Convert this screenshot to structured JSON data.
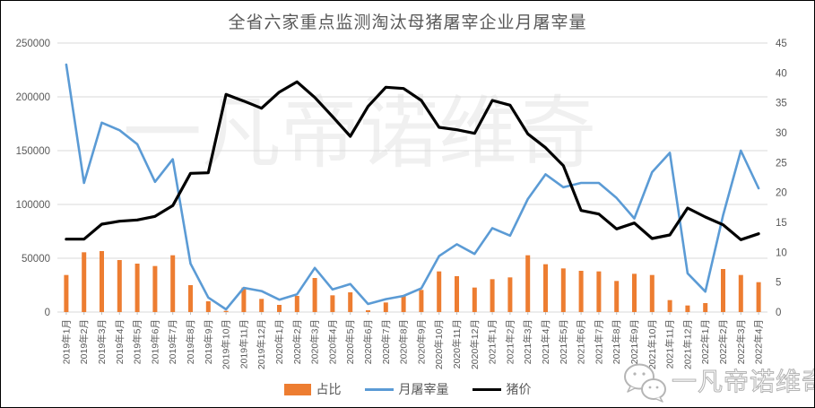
{
  "chart_data": {
    "type": "combo",
    "title": "全省六家重点监测淘汰母猪屠宰企业月屠宰量",
    "categories": [
      "2019年1月",
      "2019年2月",
      "2019年3月",
      "2019年4月",
      "2019年5月",
      "2019年6月",
      "2019年7月",
      "2019年8月",
      "2019年9月",
      "2019年10月",
      "2019年11月",
      "2019年12月",
      "2020年1月",
      "2020年2月",
      "2020年3月",
      "2020年4月",
      "2020年5月",
      "2020年6月",
      "2020年7月",
      "2020年8月",
      "2020年9月",
      "2020年10月",
      "2020年11月",
      "2020年12月",
      "2021年1月",
      "2021年2月",
      "2021年3月",
      "2021年4月",
      "2021年5月",
      "2021年6月",
      "2021年7月",
      "2021年8月",
      "2021年9月",
      "2021年10月",
      "2021年11月",
      "2021年12月",
      "2022年1月",
      "2022年2月",
      "2022年3月",
      "2022年4月"
    ],
    "series": [
      {
        "name": "占比",
        "type": "bar",
        "axis": "right",
        "color": "#ED7D31",
        "values": [
          6.2,
          10,
          10.2,
          8.7,
          8.1,
          7.7,
          9.5,
          4.5,
          1.8,
          0.2,
          4.1,
          2.2,
          1.2,
          2.7,
          5.7,
          2.8,
          3.3,
          0.3,
          1.6,
          2.8,
          3.7,
          6.8,
          6,
          4.1,
          5.5,
          5.8,
          9.5,
          8,
          7.3,
          6.9,
          6.8,
          5.2,
          6.4,
          6.2,
          2,
          1.1,
          1.5,
          7.2,
          6.2,
          5
        ]
      },
      {
        "name": "月屠宰量",
        "type": "line",
        "axis": "left",
        "color": "#5B9BD5",
        "values": [
          230000,
          120000,
          176000,
          169000,
          156000,
          121000,
          142000,
          45000,
          13500,
          2500,
          22500,
          19500,
          11500,
          16500,
          41000,
          21000,
          26000,
          7500,
          12000,
          15000,
          22000,
          52000,
          63000,
          54000,
          78000,
          71000,
          105000,
          128000,
          116000,
          120000,
          120000,
          106000,
          87000,
          130000,
          148000,
          36000,
          19000,
          90000,
          150000,
          115000
        ]
      },
      {
        "name": "猪价",
        "type": "line",
        "axis": "right",
        "color": "#000000",
        "values": [
          12.2,
          12.2,
          14.7,
          15.2,
          15.4,
          16,
          17.8,
          23.2,
          23.3,
          36.4,
          35.3,
          34.1,
          36.8,
          38.5,
          35.9,
          32.7,
          29.4,
          34.4,
          37.6,
          37.4,
          35.4,
          30.9,
          30.5,
          29.9,
          35.4,
          34.6,
          29.8,
          27.5,
          24.5,
          17,
          16.4,
          13.9,
          14.9,
          12.3,
          12.9,
          17.4,
          15.9,
          14.6,
          12.1,
          13.1
        ]
      }
    ],
    "left_axis": {
      "min": 0,
      "max": 250000,
      "ticks": [
        0,
        50000,
        100000,
        150000,
        200000,
        250000
      ]
    },
    "right_axis": {
      "min": 0,
      "max": 45,
      "ticks": [
        0,
        5,
        10,
        15,
        20,
        25,
        30,
        35,
        40,
        45
      ]
    },
    "grid": "horizontal",
    "legend_position": "bottom",
    "colors": {
      "gridline": "#D9D9D9",
      "axis_text": "#595959",
      "title_text": "#595959"
    }
  },
  "watermark": {
    "center_text": "一凡帝诺维奇",
    "footer_text": "一凡帝诺维奇"
  }
}
